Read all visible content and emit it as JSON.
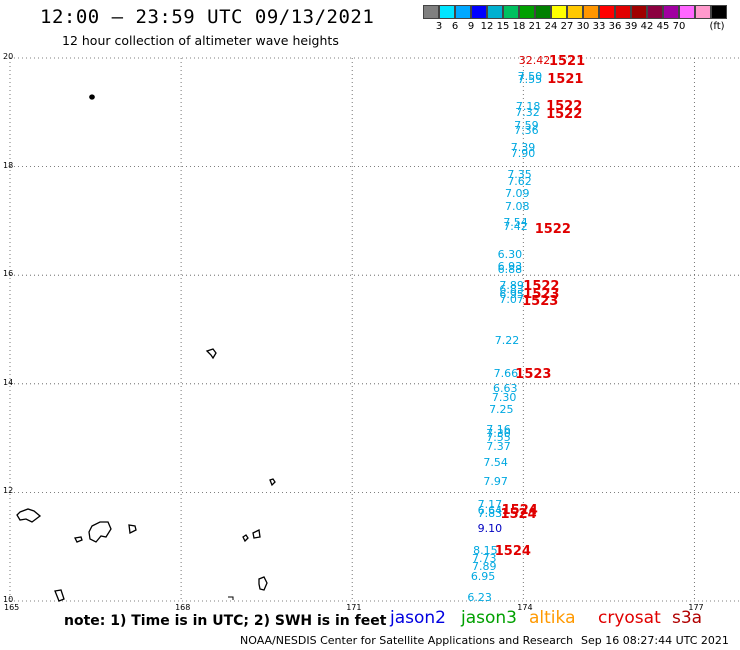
{
  "header": {
    "title": "12:00 – 23:59 UTC 09/13/2021",
    "subtitle": "12 hour collection of altimeter wave heights"
  },
  "color_scale": {
    "unit_label": "(ft)",
    "ticks": [
      "3",
      "6",
      "9",
      "12",
      "15",
      "18",
      "21",
      "24",
      "27",
      "30",
      "33",
      "36",
      "39",
      "42",
      "45",
      "70"
    ],
    "colors": [
      "#808080",
      "#00e5ff",
      "#00a8ff",
      "#0000ff",
      "#00b0d0",
      "#00c060",
      "#00a000",
      "#008000",
      "#ffff00",
      "#ffc800",
      "#ff9600",
      "#ff0000",
      "#e00000",
      "#a00000",
      "#8b0040",
      "#a000a0",
      "#ff66ff",
      "#ff99cc",
      "#000000"
    ]
  },
  "map": {
    "lat_range": [
      10,
      20
    ],
    "lon_range": [
      165,
      177.8
    ],
    "lat_labels": [
      "20",
      "18",
      "16",
      "14",
      "12",
      "10"
    ],
    "lon_labels": [
      "165",
      "168",
      "171",
      "174",
      "177"
    ],
    "observation_colors": {
      "swh": "#00a8e0",
      "swh_low": "#0000c0",
      "pass": "#e00000"
    },
    "observations": [
      {
        "lon": 173.92,
        "lat": 19.94,
        "text": "32.42",
        "kind": "swh_red"
      },
      {
        "lon": 174.45,
        "lat": 19.94,
        "text": "1521",
        "kind": "pass"
      },
      {
        "lon": 173.9,
        "lat": 19.65,
        "text": "7.50",
        "kind": "swh"
      },
      {
        "lon": 173.9,
        "lat": 19.6,
        "text": "7.55",
        "kind": "swh"
      },
      {
        "lon": 174.42,
        "lat": 19.62,
        "text": "1521",
        "kind": "pass"
      },
      {
        "lon": 173.87,
        "lat": 19.1,
        "text": "7.18",
        "kind": "swh"
      },
      {
        "lon": 174.4,
        "lat": 19.12,
        "text": "1522",
        "kind": "pass"
      },
      {
        "lon": 173.86,
        "lat": 18.98,
        "text": "7.32",
        "kind": "swh"
      },
      {
        "lon": 174.4,
        "lat": 18.97,
        "text": "1522",
        "kind": "pass"
      },
      {
        "lon": 173.84,
        "lat": 18.75,
        "text": "7.59",
        "kind": "swh"
      },
      {
        "lon": 173.84,
        "lat": 18.66,
        "text": "7.36",
        "kind": "swh"
      },
      {
        "lon": 173.78,
        "lat": 18.35,
        "text": "7.39",
        "kind": "swh"
      },
      {
        "lon": 173.78,
        "lat": 18.23,
        "text": "7.90",
        "kind": "swh"
      },
      {
        "lon": 173.72,
        "lat": 17.85,
        "text": "7.35",
        "kind": "swh"
      },
      {
        "lon": 173.72,
        "lat": 17.71,
        "text": "7.62",
        "kind": "swh"
      },
      {
        "lon": 173.68,
        "lat": 17.5,
        "text": "7.09",
        "kind": "swh"
      },
      {
        "lon": 173.68,
        "lat": 17.25,
        "text": "7.08",
        "kind": "swh"
      },
      {
        "lon": 173.65,
        "lat": 16.97,
        "text": "7.54",
        "kind": "swh"
      },
      {
        "lon": 173.65,
        "lat": 16.88,
        "text": "7.42",
        "kind": "swh"
      },
      {
        "lon": 174.2,
        "lat": 16.85,
        "text": "1522",
        "kind": "pass"
      },
      {
        "lon": 173.55,
        "lat": 16.38,
        "text": "6.30",
        "kind": "swh"
      },
      {
        "lon": 173.55,
        "lat": 16.16,
        "text": "6.93",
        "kind": "swh"
      },
      {
        "lon": 173.55,
        "lat": 16.1,
        "text": "6.88",
        "kind": "swh"
      },
      {
        "lon": 173.58,
        "lat": 15.8,
        "text": "7.89",
        "kind": "swh"
      },
      {
        "lon": 174.0,
        "lat": 15.8,
        "text": "1522",
        "kind": "pass"
      },
      {
        "lon": 173.58,
        "lat": 15.72,
        "text": "6.83",
        "kind": "swh"
      },
      {
        "lon": 173.58,
        "lat": 15.64,
        "text": "6.95",
        "kind": "swh"
      },
      {
        "lon": 174.0,
        "lat": 15.66,
        "text": "1523",
        "kind": "pass"
      },
      {
        "lon": 173.58,
        "lat": 15.55,
        "text": "7.07",
        "kind": "swh"
      },
      {
        "lon": 173.98,
        "lat": 15.52,
        "text": "1523",
        "kind": "pass"
      },
      {
        "lon": 173.5,
        "lat": 14.78,
        "text": "7.22",
        "kind": "swh"
      },
      {
        "lon": 173.48,
        "lat": 14.18,
        "text": "7.66",
        "kind": "swh"
      },
      {
        "lon": 173.86,
        "lat": 14.18,
        "text": "1523",
        "kind": "pass"
      },
      {
        "lon": 173.47,
        "lat": 13.9,
        "text": "6.63",
        "kind": "swh"
      },
      {
        "lon": 173.45,
        "lat": 13.73,
        "text": "7.30",
        "kind": "swh"
      },
      {
        "lon": 173.4,
        "lat": 13.52,
        "text": "7.25",
        "kind": "swh"
      },
      {
        "lon": 173.35,
        "lat": 13.15,
        "text": "7.16",
        "kind": "swh"
      },
      {
        "lon": 173.35,
        "lat": 13.08,
        "text": "7.30",
        "kind": "swh"
      },
      {
        "lon": 173.35,
        "lat": 13.0,
        "text": "7.55",
        "kind": "swh"
      },
      {
        "lon": 173.35,
        "lat": 12.84,
        "text": "7.37",
        "kind": "swh"
      },
      {
        "lon": 173.3,
        "lat": 12.55,
        "text": "7.54",
        "kind": "swh"
      },
      {
        "lon": 173.3,
        "lat": 12.2,
        "text": "7.97",
        "kind": "swh"
      },
      {
        "lon": 173.2,
        "lat": 11.77,
        "text": "7.17",
        "kind": "swh"
      },
      {
        "lon": 173.2,
        "lat": 11.66,
        "text": "6.64",
        "kind": "swh"
      },
      {
        "lon": 173.2,
        "lat": 11.6,
        "text": "7.83",
        "kind": "swh"
      },
      {
        "lon": 173.62,
        "lat": 11.68,
        "text": "1524",
        "kind": "pass"
      },
      {
        "lon": 173.6,
        "lat": 11.6,
        "text": "1524",
        "kind": "pass"
      },
      {
        "lon": 173.2,
        "lat": 11.33,
        "text": "9.10",
        "kind": "swh_low"
      },
      {
        "lon": 173.12,
        "lat": 10.93,
        "text": "8.15",
        "kind": "swh"
      },
      {
        "lon": 173.5,
        "lat": 10.93,
        "text": "1524",
        "kind": "pass"
      },
      {
        "lon": 173.1,
        "lat": 10.78,
        "text": "7.73",
        "kind": "swh"
      },
      {
        "lon": 173.1,
        "lat": 10.62,
        "text": "7.89",
        "kind": "swh"
      },
      {
        "lon": 173.08,
        "lat": 10.45,
        "text": "6.95",
        "kind": "swh"
      },
      {
        "lon": 173.02,
        "lat": 10.05,
        "text": "6.23",
        "kind": "swh"
      }
    ]
  },
  "notes": {
    "units_note": "note: 1) Time is in UTC; 2) SWH is in feet",
    "credit": "NOAA/NESDIS Center for Satellite Applications and Research",
    "generated": "Sep 16 08:27:44 UTC 2021"
  },
  "legend": [
    {
      "label": "jason2",
      "color": "#0000e0"
    },
    {
      "label": "jason3",
      "color": "#00a000"
    },
    {
      "label": "altika",
      "color": "#ff9900"
    },
    {
      "label": "cryosat",
      "color": "#e00000"
    },
    {
      "label": "s3a",
      "color": "#b00000"
    }
  ]
}
